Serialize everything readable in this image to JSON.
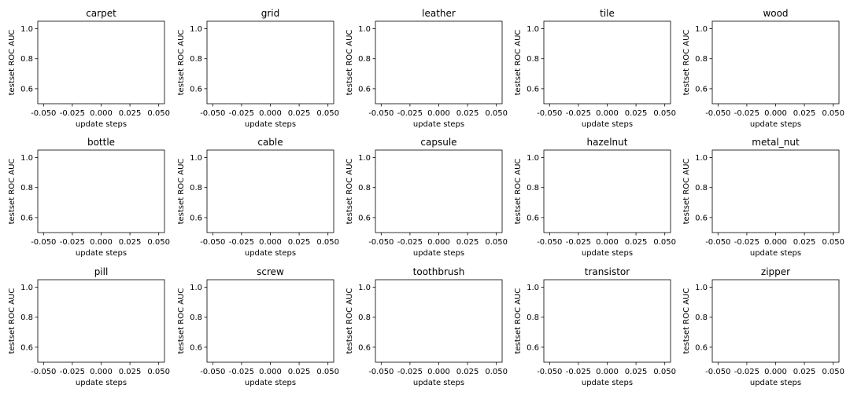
{
  "chart_data": [
    {
      "type": "line",
      "title": "carpet",
      "xlabel": "update steps",
      "ylabel": "testset ROC AUC",
      "xlim": [
        -0.055,
        0.055
      ],
      "ylim": [
        0.5,
        1.05
      ],
      "xticks": [
        "-0.050",
        "-0.025",
        "0.000",
        "0.025",
        "0.050"
      ],
      "yticks": [
        "0.6",
        "0.8",
        "1.0"
      ],
      "series": []
    },
    {
      "type": "line",
      "title": "grid",
      "xlabel": "update steps",
      "ylabel": "testset ROC AUC",
      "xlim": [
        -0.055,
        0.055
      ],
      "ylim": [
        0.5,
        1.05
      ],
      "xticks": [
        "-0.050",
        "-0.025",
        "0.000",
        "0.025",
        "0.050"
      ],
      "yticks": [
        "0.6",
        "0.8",
        "1.0"
      ],
      "series": []
    },
    {
      "type": "line",
      "title": "leather",
      "xlabel": "update steps",
      "ylabel": "testset ROC AUC",
      "xlim": [
        -0.055,
        0.055
      ],
      "ylim": [
        0.5,
        1.05
      ],
      "xticks": [
        "-0.050",
        "-0.025",
        "0.000",
        "0.025",
        "0.050"
      ],
      "yticks": [
        "0.6",
        "0.8",
        "1.0"
      ],
      "series": []
    },
    {
      "type": "line",
      "title": "tile",
      "xlabel": "update steps",
      "ylabel": "testset ROC AUC",
      "xlim": [
        -0.055,
        0.055
      ],
      "ylim": [
        0.5,
        1.05
      ],
      "xticks": [
        "-0.050",
        "-0.025",
        "0.000",
        "0.025",
        "0.050"
      ],
      "yticks": [
        "0.6",
        "0.8",
        "1.0"
      ],
      "series": []
    },
    {
      "type": "line",
      "title": "wood",
      "xlabel": "update steps",
      "ylabel": "testset ROC AUC",
      "xlim": [
        -0.055,
        0.055
      ],
      "ylim": [
        0.5,
        1.05
      ],
      "xticks": [
        "-0.050",
        "-0.025",
        "0.000",
        "0.025",
        "0.050"
      ],
      "yticks": [
        "0.6",
        "0.8",
        "1.0"
      ],
      "series": []
    },
    {
      "type": "line",
      "title": "bottle",
      "xlabel": "update steps",
      "ylabel": "testset ROC AUC",
      "xlim": [
        -0.055,
        0.055
      ],
      "ylim": [
        0.5,
        1.05
      ],
      "xticks": [
        "-0.050",
        "-0.025",
        "0.000",
        "0.025",
        "0.050"
      ],
      "yticks": [
        "0.6",
        "0.8",
        "1.0"
      ],
      "series": []
    },
    {
      "type": "line",
      "title": "cable",
      "xlabel": "update steps",
      "ylabel": "testset ROC AUC",
      "xlim": [
        -0.055,
        0.055
      ],
      "ylim": [
        0.5,
        1.05
      ],
      "xticks": [
        "-0.050",
        "-0.025",
        "0.000",
        "0.025",
        "0.050"
      ],
      "yticks": [
        "0.6",
        "0.8",
        "1.0"
      ],
      "series": []
    },
    {
      "type": "line",
      "title": "capsule",
      "xlabel": "update steps",
      "ylabel": "testset ROC AUC",
      "xlim": [
        -0.055,
        0.055
      ],
      "ylim": [
        0.5,
        1.05
      ],
      "xticks": [
        "-0.050",
        "-0.025",
        "0.000",
        "0.025",
        "0.050"
      ],
      "yticks": [
        "0.6",
        "0.8",
        "1.0"
      ],
      "series": []
    },
    {
      "type": "line",
      "title": "hazelnut",
      "xlabel": "update steps",
      "ylabel": "testset ROC AUC",
      "xlim": [
        -0.055,
        0.055
      ],
      "ylim": [
        0.5,
        1.05
      ],
      "xticks": [
        "-0.050",
        "-0.025",
        "0.000",
        "0.025",
        "0.050"
      ],
      "yticks": [
        "0.6",
        "0.8",
        "1.0"
      ],
      "series": []
    },
    {
      "type": "line",
      "title": "metal_nut",
      "xlabel": "update steps",
      "ylabel": "testset ROC AUC",
      "xlim": [
        -0.055,
        0.055
      ],
      "ylim": [
        0.5,
        1.05
      ],
      "xticks": [
        "-0.050",
        "-0.025",
        "0.000",
        "0.025",
        "0.050"
      ],
      "yticks": [
        "0.6",
        "0.8",
        "1.0"
      ],
      "series": []
    },
    {
      "type": "line",
      "title": "pill",
      "xlabel": "update steps",
      "ylabel": "testset ROC AUC",
      "xlim": [
        -0.055,
        0.055
      ],
      "ylim": [
        0.5,
        1.05
      ],
      "xticks": [
        "-0.050",
        "-0.025",
        "0.000",
        "0.025",
        "0.050"
      ],
      "yticks": [
        "0.6",
        "0.8",
        "1.0"
      ],
      "series": []
    },
    {
      "type": "line",
      "title": "screw",
      "xlabel": "update steps",
      "ylabel": "testset ROC AUC",
      "xlim": [
        -0.055,
        0.055
      ],
      "ylim": [
        0.5,
        1.05
      ],
      "xticks": [
        "-0.050",
        "-0.025",
        "0.000",
        "0.025",
        "0.050"
      ],
      "yticks": [
        "0.6",
        "0.8",
        "1.0"
      ],
      "series": []
    },
    {
      "type": "line",
      "title": "toothbrush",
      "xlabel": "update steps",
      "ylabel": "testset ROC AUC",
      "xlim": [
        -0.055,
        0.055
      ],
      "ylim": [
        0.5,
        1.05
      ],
      "xticks": [
        "-0.050",
        "-0.025",
        "0.000",
        "0.025",
        "0.050"
      ],
      "yticks": [
        "0.6",
        "0.8",
        "1.0"
      ],
      "series": []
    },
    {
      "type": "line",
      "title": "transistor",
      "xlabel": "update steps",
      "ylabel": "testset ROC AUC",
      "xlim": [
        -0.055,
        0.055
      ],
      "ylim": [
        0.5,
        1.05
      ],
      "xticks": [
        "-0.050",
        "-0.025",
        "0.000",
        "0.025",
        "0.050"
      ],
      "yticks": [
        "0.6",
        "0.8",
        "1.0"
      ],
      "series": []
    },
    {
      "type": "line",
      "title": "zipper",
      "xlabel": "update steps",
      "ylabel": "testset ROC AUC",
      "xlim": [
        -0.055,
        0.055
      ],
      "ylim": [
        0.5,
        1.05
      ],
      "xticks": [
        "-0.050",
        "-0.025",
        "0.000",
        "0.025",
        "0.050"
      ],
      "yticks": [
        "0.6",
        "0.8",
        "1.0"
      ],
      "series": []
    }
  ]
}
